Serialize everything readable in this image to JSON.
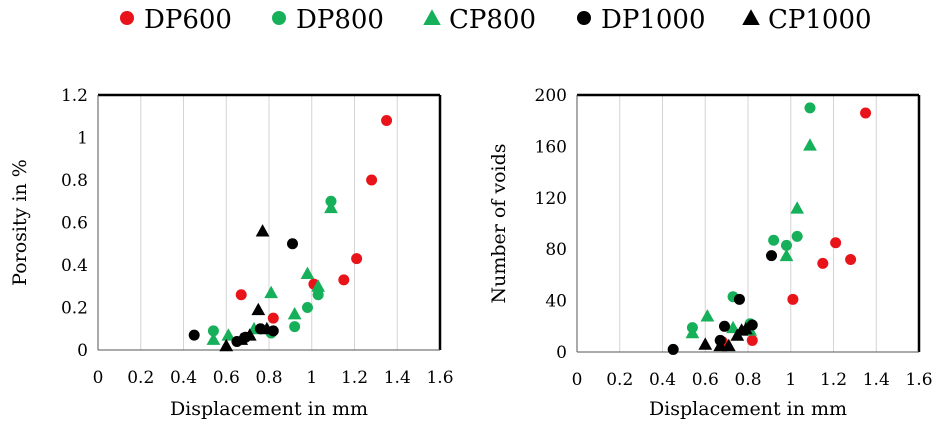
{
  "legend": [
    {
      "label": "DP600",
      "color": "#e8141a",
      "marker": "circle"
    },
    {
      "label": "DP800",
      "color": "#17b05a",
      "marker": "circle"
    },
    {
      "label": "CP800",
      "color": "#17b05a",
      "marker": "triangle"
    },
    {
      "label": "DP1000",
      "color": "#000000",
      "marker": "circle"
    },
    {
      "label": "CP1000",
      "color": "#000000",
      "marker": "triangle"
    }
  ],
  "chart_data": [
    {
      "type": "scatter",
      "title": "",
      "xlabel": "Displacement in mm",
      "ylabel": "Porosity in %",
      "xlim": [
        0,
        1.6
      ],
      "ylim": [
        0,
        1.2
      ],
      "x_ticks": [
        "0",
        "0.2",
        "0.4",
        "0.6",
        "0.8",
        "1",
        "1.2",
        "1.4",
        "1.6"
      ],
      "y_ticks": [
        "0",
        "0.2",
        "0.4",
        "0.6",
        "0.8",
        "1",
        "1.2"
      ],
      "grid": "vertical",
      "series": [
        {
          "name": "DP600",
          "marker": "circle",
          "color": "#e8141a",
          "points": [
            [
              0.67,
              0.26
            ],
            [
              0.82,
              0.15
            ],
            [
              1.01,
              0.31
            ],
            [
              1.15,
              0.33
            ],
            [
              1.21,
              0.43
            ],
            [
              1.28,
              0.8
            ],
            [
              1.35,
              1.08
            ]
          ]
        },
        {
          "name": "DP800",
          "marker": "circle",
          "color": "#17b05a",
          "points": [
            [
              0.54,
              0.09
            ],
            [
              0.81,
              0.08
            ],
            [
              0.92,
              0.11
            ],
            [
              0.98,
              0.2
            ],
            [
              1.03,
              0.26
            ],
            [
              1.09,
              0.7
            ]
          ]
        },
        {
          "name": "CP800",
          "marker": "triangle",
          "color": "#17b05a",
          "points": [
            [
              0.54,
              0.05
            ],
            [
              0.61,
              0.07
            ],
            [
              0.73,
              0.1
            ],
            [
              0.81,
              0.27
            ],
            [
              0.92,
              0.17
            ],
            [
              0.98,
              0.36
            ],
            [
              1.03,
              0.3
            ],
            [
              1.09,
              0.67
            ]
          ]
        },
        {
          "name": "DP1000",
          "marker": "circle",
          "color": "#000000",
          "points": [
            [
              0.45,
              0.07
            ],
            [
              0.65,
              0.04
            ],
            [
              0.69,
              0.06
            ],
            [
              0.76,
              0.1
            ],
            [
              0.82,
              0.09
            ],
            [
              0.91,
              0.5
            ]
          ]
        },
        {
          "name": "CP1000",
          "marker": "triangle",
          "color": "#000000",
          "points": [
            [
              0.6,
              0.02
            ],
            [
              0.67,
              0.05
            ],
            [
              0.71,
              0.07
            ],
            [
              0.75,
              0.19
            ],
            [
              0.77,
              0.56
            ],
            [
              0.79,
              0.1
            ]
          ]
        }
      ]
    },
    {
      "type": "scatter",
      "title": "",
      "xlabel": "Displacement in mm",
      "ylabel": "Number of voids",
      "xlim": [
        0,
        1.6
      ],
      "ylim": [
        0,
        200
      ],
      "x_ticks": [
        "0",
        "0.2",
        "0.4",
        "0.6",
        "0.8",
        "1",
        "1.2",
        "1.4",
        "1.6"
      ],
      "y_ticks": [
        "0",
        "40",
        "80",
        "120",
        "160",
        "200"
      ],
      "grid": "vertical",
      "series": [
        {
          "name": "DP600",
          "marker": "circle",
          "color": "#e8141a",
          "points": [
            [
              0.68,
              8
            ],
            [
              0.82,
              9
            ],
            [
              1.01,
              41
            ],
            [
              1.15,
              69
            ],
            [
              1.21,
              85
            ],
            [
              1.28,
              72
            ],
            [
              1.35,
              186
            ]
          ]
        },
        {
          "name": "DP800",
          "marker": "circle",
          "color": "#17b05a",
          "points": [
            [
              0.54,
              19
            ],
            [
              0.73,
              43
            ],
            [
              0.81,
              22
            ],
            [
              0.92,
              87
            ],
            [
              0.98,
              83
            ],
            [
              1.03,
              90
            ],
            [
              1.09,
              190
            ]
          ]
        },
        {
          "name": "CP800",
          "marker": "triangle",
          "color": "#17b05a",
          "points": [
            [
              0.54,
              15
            ],
            [
              0.61,
              28
            ],
            [
              0.73,
              19
            ],
            [
              0.81,
              17
            ],
            [
              0.98,
              75
            ],
            [
              1.03,
              112
            ],
            [
              1.09,
              161
            ]
          ]
        },
        {
          "name": "DP1000",
          "marker": "circle",
          "color": "#000000",
          "points": [
            [
              0.45,
              2
            ],
            [
              0.67,
              9
            ],
            [
              0.69,
              20
            ],
            [
              0.76,
              41
            ],
            [
              0.82,
              21
            ],
            [
              0.91,
              75
            ]
          ]
        },
        {
          "name": "CP1000",
          "marker": "triangle",
          "color": "#000000",
          "points": [
            [
              0.6,
              6
            ],
            [
              0.67,
              5
            ],
            [
              0.71,
              5
            ],
            [
              0.75,
              13
            ],
            [
              0.77,
              17
            ],
            [
              0.79,
              18
            ]
          ]
        }
      ]
    }
  ]
}
